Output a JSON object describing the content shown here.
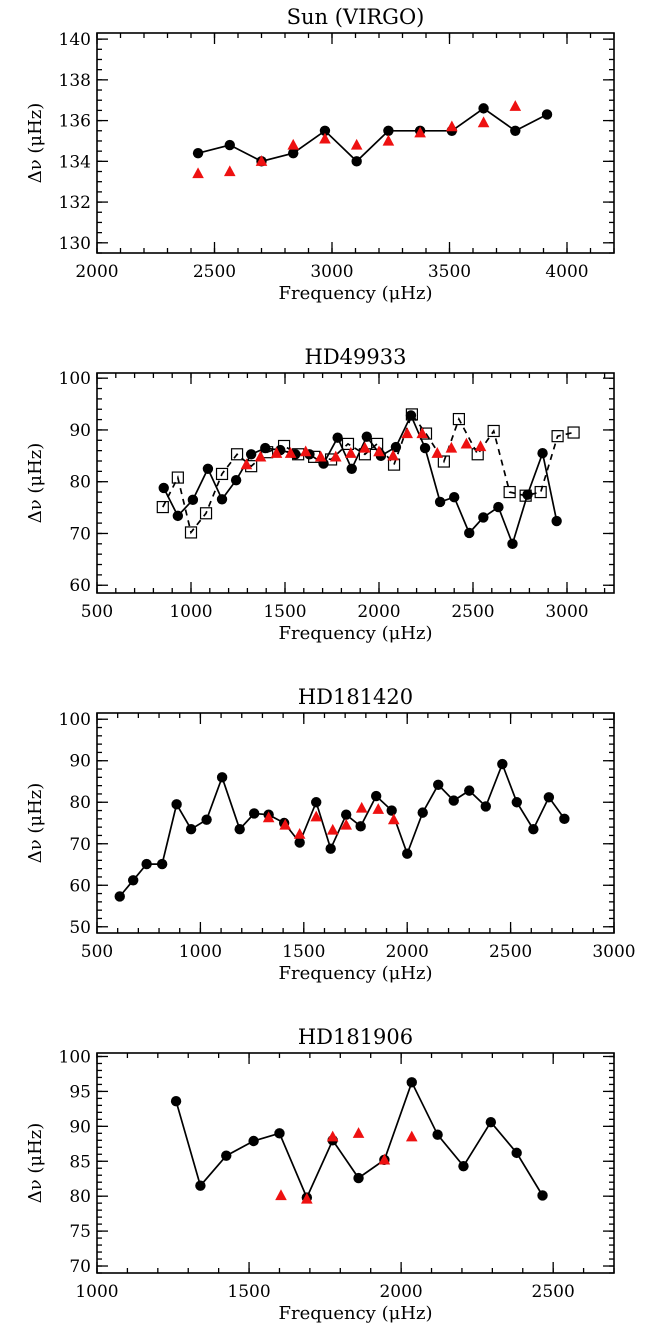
{
  "chart_data": [
    {
      "type": "scatter",
      "title": "Sun (VIRGO)",
      "xlabel": "Frequency (μHz)",
      "ylabel": "Δν (μHz)",
      "xlim": [
        2000,
        4200
      ],
      "ylim": [
        129.5,
        140.3
      ],
      "xticks": [
        2000,
        2500,
        3000,
        3500,
        4000
      ],
      "yticks": [
        130,
        132,
        134,
        136,
        138,
        140
      ],
      "xminor": 100,
      "yminor": 0.5,
      "grid": false,
      "series": [
        {
          "marker": "circle-filled",
          "color": "#000000",
          "line": "solid",
          "points": [
            [
              2430,
              134.4
            ],
            [
              2565,
              134.8
            ],
            [
              2700,
              134.0
            ],
            [
              2835,
              134.4
            ],
            [
              2970,
              135.5
            ],
            [
              3105,
              134.0
            ],
            [
              3240,
              135.5
            ],
            [
              3375,
              135.5
            ],
            [
              3510,
              135.5
            ],
            [
              3645,
              136.6
            ],
            [
              3780,
              135.5
            ],
            [
              3915,
              136.3
            ]
          ]
        },
        {
          "marker": "triangle-filled",
          "color": "#ee1111",
          "line": "none",
          "points": [
            [
              2430,
              133.4
            ],
            [
              2565,
              133.5
            ],
            [
              2700,
              134.0
            ],
            [
              2835,
              134.8
            ],
            [
              2970,
              135.1
            ],
            [
              3105,
              134.8
            ],
            [
              3240,
              135.0
            ],
            [
              3375,
              135.4
            ],
            [
              3510,
              135.7
            ],
            [
              3645,
              135.9
            ],
            [
              3780,
              136.7
            ]
          ]
        }
      ]
    },
    {
      "type": "scatter",
      "title": "HD49933",
      "xlabel": "Frequency (μHz)",
      "ylabel": "Δν (μHz)",
      "xlim": [
        500,
        3250
      ],
      "ylim": [
        58.5,
        101
      ],
      "xticks": [
        500,
        1000,
        1500,
        2000,
        2500,
        3000
      ],
      "yticks": [
        60,
        70,
        80,
        90,
        100
      ],
      "xminor": 100,
      "yminor": 2,
      "grid": false,
      "series": [
        {
          "marker": "circle-filled",
          "color": "#000000",
          "line": "solid",
          "points": [
            [
              855,
              78.8
            ],
            [
              930,
              73.4
            ],
            [
              1010,
              76.5
            ],
            [
              1090,
              82.5
            ],
            [
              1165,
              76.6
            ],
            [
              1240,
              80.3
            ],
            [
              1320,
              85.3
            ],
            [
              1395,
              86.5
            ],
            [
              1475,
              86.1
            ],
            [
              1555,
              85.3
            ],
            [
              1630,
              85.3
            ],
            [
              1705,
              83.5
            ],
            [
              1780,
              88.5
            ],
            [
              1855,
              82.5
            ],
            [
              1935,
              88.7
            ],
            [
              2010,
              85.0
            ],
            [
              2090,
              86.7
            ],
            [
              2170,
              92.8
            ],
            [
              2245,
              86.5
            ],
            [
              2325,
              76.1
            ],
            [
              2400,
              77.0
            ],
            [
              2480,
              70.1
            ],
            [
              2555,
              73.1
            ],
            [
              2635,
              75.1
            ],
            [
              2710,
              68.0
            ],
            [
              2790,
              77.5
            ],
            [
              2870,
              85.5
            ],
            [
              2945,
              72.4
            ]
          ]
        },
        {
          "marker": "square-open",
          "color": "#000000",
          "line": "dashed",
          "points": [
            [
              850,
              75.1
            ],
            [
              930,
              80.8
            ],
            [
              1000,
              70.2
            ],
            [
              1080,
              73.9
            ],
            [
              1165,
              81.5
            ],
            [
              1245,
              85.3
            ],
            [
              1320,
              83.0
            ],
            [
              1405,
              85.7
            ],
            [
              1495,
              86.9
            ],
            [
              1570,
              85.3
            ],
            [
              1655,
              84.8
            ],
            [
              1745,
              84.3
            ],
            [
              1835,
              87.3
            ],
            [
              1925,
              85.3
            ],
            [
              1990,
              87.3
            ],
            [
              2080,
              83.3
            ],
            [
              2175,
              93.0
            ],
            [
              2250,
              89.3
            ],
            [
              2345,
              83.9
            ],
            [
              2425,
              92.1
            ],
            [
              2525,
              85.3
            ],
            [
              2610,
              89.8
            ],
            [
              2695,
              78.0
            ],
            [
              2780,
              77.3
            ],
            [
              2860,
              78.0
            ],
            [
              2950,
              88.8
            ],
            [
              3035,
              89.5
            ]
          ]
        },
        {
          "marker": "triangle-filled",
          "color": "#ee1111",
          "line": "none",
          "points": [
            [
              1295,
              83.3
            ],
            [
              1370,
              84.8
            ],
            [
              1455,
              85.5
            ],
            [
              1530,
              85.5
            ],
            [
              1610,
              85.8
            ],
            [
              1690,
              84.8
            ],
            [
              1770,
              84.8
            ],
            [
              1850,
              85.5
            ],
            [
              1925,
              86.5
            ],
            [
              2000,
              85.8
            ],
            [
              2075,
              85.0
            ],
            [
              2150,
              89.3
            ],
            [
              2230,
              89.3
            ],
            [
              2310,
              85.5
            ],
            [
              2385,
              86.5
            ],
            [
              2465,
              87.3
            ],
            [
              2540,
              86.8
            ]
          ]
        }
      ]
    },
    {
      "type": "scatter",
      "title": "HD181420",
      "xlabel": "Frequency (μHz)",
      "ylabel": "Δν (μHz)",
      "xlim": [
        500,
        3000
      ],
      "ylim": [
        48.5,
        101.5
      ],
      "xticks": [
        500,
        1000,
        1500,
        2000,
        2500,
        3000
      ],
      "yticks": [
        50,
        60,
        70,
        80,
        90,
        100
      ],
      "xminor": 100,
      "yminor": 2,
      "grid": false,
      "series": [
        {
          "marker": "circle-filled",
          "color": "#000000",
          "line": "solid",
          "points": [
            [
              610,
              57.3
            ],
            [
              675,
              61.2
            ],
            [
              740,
              65.1
            ],
            [
              815,
              65.1
            ],
            [
              885,
              79.5
            ],
            [
              955,
              73.5
            ],
            [
              1030,
              75.8
            ],
            [
              1105,
              86.0
            ],
            [
              1190,
              73.5
            ],
            [
              1260,
              77.3
            ],
            [
              1330,
              77.0
            ],
            [
              1405,
              75.0
            ],
            [
              1480,
              70.3
            ],
            [
              1560,
              80.0
            ],
            [
              1630,
              68.8
            ],
            [
              1705,
              77.0
            ],
            [
              1775,
              74.2
            ],
            [
              1850,
              81.5
            ],
            [
              1925,
              78.0
            ],
            [
              2000,
              67.6
            ],
            [
              2075,
              77.5
            ],
            [
              2150,
              84.2
            ],
            [
              2225,
              80.4
            ],
            [
              2300,
              82.8
            ],
            [
              2380,
              79.0
            ],
            [
              2460,
              89.2
            ],
            [
              2530,
              80.0
            ],
            [
              2610,
              73.5
            ],
            [
              2685,
              81.2
            ],
            [
              2760,
              76.0
            ]
          ]
        },
        {
          "marker": "triangle-filled",
          "color": "#ee1111",
          "line": "none",
          "points": [
            [
              1330,
              76.3
            ],
            [
              1410,
              74.5
            ],
            [
              1480,
              72.3
            ],
            [
              1560,
              76.5
            ],
            [
              1640,
              73.3
            ],
            [
              1705,
              74.5
            ],
            [
              1780,
              78.6
            ],
            [
              1860,
              78.3
            ],
            [
              1935,
              75.8
            ]
          ]
        }
      ]
    },
    {
      "type": "scatter",
      "title": "HD181906",
      "xlabel": "Frequency (μHz)",
      "ylabel": "Δν (μHz)",
      "xlim": [
        1000,
        2700
      ],
      "ylim": [
        69,
        100.5
      ],
      "xticks": [
        1000,
        1500,
        2000,
        2500
      ],
      "yticks": [
        70,
        75,
        80,
        85,
        90,
        95,
        100
      ],
      "xminor": 100,
      "yminor": 1,
      "grid": false,
      "series": [
        {
          "marker": "circle-filled",
          "color": "#000000",
          "line": "solid",
          "points": [
            [
              1260,
              93.6
            ],
            [
              1340,
              81.5
            ],
            [
              1425,
              85.8
            ],
            [
              1515,
              87.9
            ],
            [
              1600,
              89.0
            ],
            [
              1690,
              79.8
            ],
            [
              1775,
              88.0
            ],
            [
              1860,
              82.6
            ],
            [
              1945,
              85.2
            ],
            [
              2035,
              96.3
            ],
            [
              2120,
              88.8
            ],
            [
              2205,
              84.3
            ],
            [
              2295,
              90.6
            ],
            [
              2380,
              86.2
            ],
            [
              2465,
              80.1
            ]
          ]
        },
        {
          "marker": "triangle-filled",
          "color": "#ee1111",
          "line": "none",
          "points": [
            [
              1605,
              80.1
            ],
            [
              1690,
              79.6
            ],
            [
              1775,
              88.5
            ],
            [
              1860,
              89.0
            ],
            [
              1945,
              85.2
            ],
            [
              2035,
              88.5
            ]
          ]
        }
      ]
    }
  ]
}
